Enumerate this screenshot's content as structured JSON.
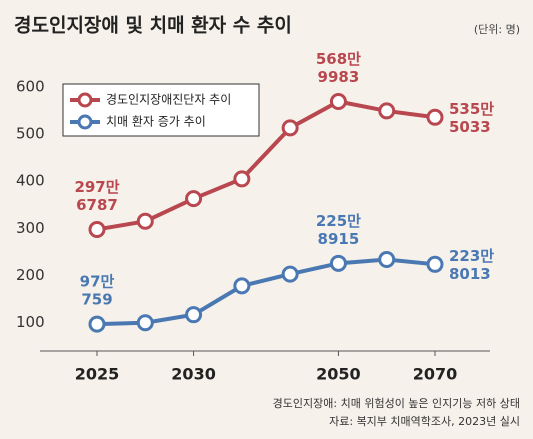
{
  "chart_data": {
    "type": "line",
    "title": "경도인지장애 및 치매 환자 수 추이",
    "unit": "(단위: 명)",
    "categories": [
      "2025",
      null,
      "2030",
      null,
      null,
      "2050",
      null,
      "2070"
    ],
    "ylim": [
      40,
      640
    ],
    "yticks": [
      100,
      200,
      300,
      400,
      500,
      600
    ],
    "legend": "top-left",
    "series": [
      {
        "name": "경도인지장애진단자 추이",
        "color": "#b8474f",
        "values": [
          297.6787,
          315,
          363,
          405,
          513,
          568.9983,
          549,
          535.5033
        ],
        "value_labels": [
          [
            "297만",
            "6787"
          ],
          null,
          null,
          null,
          null,
          [
            "568만",
            "9983"
          ],
          null,
          [
            "535만",
            "5033"
          ]
        ]
      },
      {
        "name": "치매 환자 증가 추이",
        "color": "#4a78b2",
        "values": [
          97.0759,
          100,
          117,
          178,
          203,
          225.8915,
          234,
          223.8013
        ],
        "value_labels": [
          [
            "97만",
            "759"
          ],
          null,
          null,
          null,
          null,
          [
            "225만",
            "8915"
          ],
          null,
          [
            "223만",
            "8013"
          ]
        ]
      }
    ],
    "notes": [
      "경도인지장애: 치매 위험성이 높은 인지기능 저하 상태",
      "자료: 복지부 치매역학조사, 2023년 실시"
    ]
  }
}
